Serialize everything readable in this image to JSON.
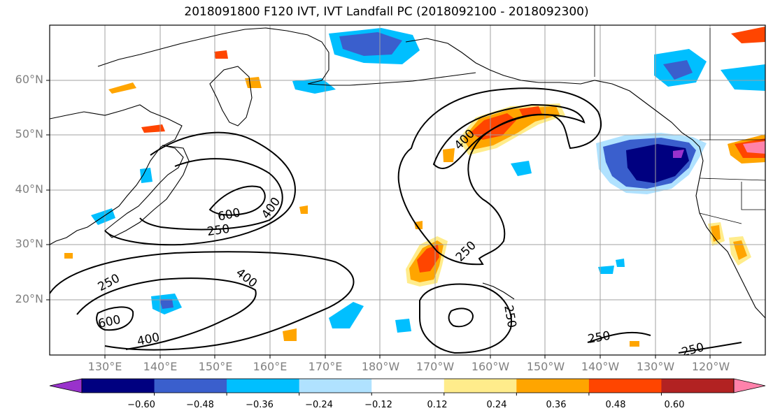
{
  "title": "2018091800 F120 IVT, IVT Landfall PC (2018092100 - 2018092300)",
  "lat_labels": [
    "60°N",
    "50°N",
    "40°N",
    "30°N",
    "20°N"
  ],
  "lon_labels": [
    "130°E",
    "140°E",
    "150°E",
    "160°E",
    "170°E",
    "180°W",
    "170°W",
    "160°W",
    "150°W",
    "140°W",
    "130°W",
    "120°W"
  ],
  "contour_labels": [
    "600",
    "400",
    "250",
    "250",
    "400",
    "600",
    "400",
    "400",
    "250",
    "250",
    "250",
    "250"
  ],
  "colorbar": {
    "colors": [
      "#9932CC",
      "#000080",
      "#3A5FCD",
      "#00BFFF",
      "#B0E2FF",
      "#FFFFFF",
      "#FFEC8B",
      "#FFA500",
      "#FF4500",
      "#B22222",
      "#FF82AB"
    ],
    "tick_labels": [
      "−0.60",
      "−0.48",
      "−0.36",
      "−0.24",
      "−0.12",
      "0.12",
      "0.24",
      "0.36",
      "0.48",
      "0.60"
    ]
  }
}
